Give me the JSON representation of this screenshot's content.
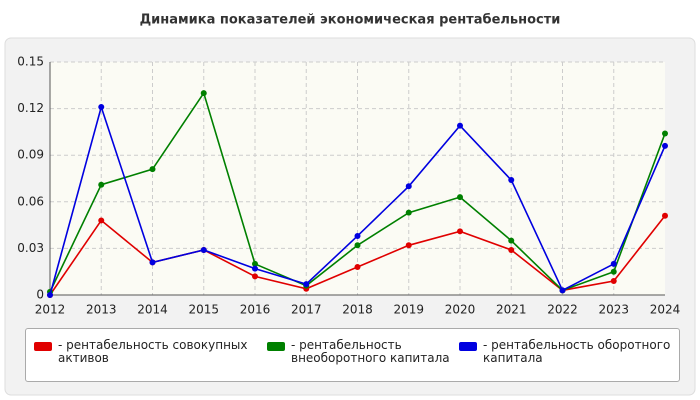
{
  "chart_data": {
    "type": "line",
    "title": "Динамика показателей экономическая рентабельности",
    "categories": [
      "2012",
      "2013",
      "2014",
      "2015",
      "2016",
      "2017",
      "2018",
      "2019",
      "2020",
      "2021",
      "2022",
      "2023",
      "2024"
    ],
    "ylim": [
      0,
      0.15
    ],
    "yticks": [
      0,
      0.03,
      0.06,
      0.09,
      0.12,
      0.15
    ],
    "grid": true,
    "series": [
      {
        "name": "- рентабельность совокупных активов",
        "color": "#e00000",
        "values": [
          0,
          0.048,
          0.021,
          0.029,
          0.012,
          0.004,
          0.018,
          0.032,
          0.041,
          0.029,
          0.003,
          0.009,
          0.051
        ]
      },
      {
        "name": "- рентабельность внеоборотного капитала",
        "color": "#008000",
        "values": [
          0.002,
          0.071,
          0.081,
          0.13,
          0.02,
          0.006,
          0.032,
          0.053,
          0.063,
          0.035,
          0.003,
          0.015,
          0.104
        ]
      },
      {
        "name": "- рентабельность оборотного капитала",
        "color": "#0000e0",
        "values": [
          0,
          0.121,
          0.021,
          0.029,
          0.017,
          0.007,
          0.038,
          0.07,
          0.109,
          0.074,
          0.003,
          0.02,
          0.096
        ]
      }
    ]
  }
}
